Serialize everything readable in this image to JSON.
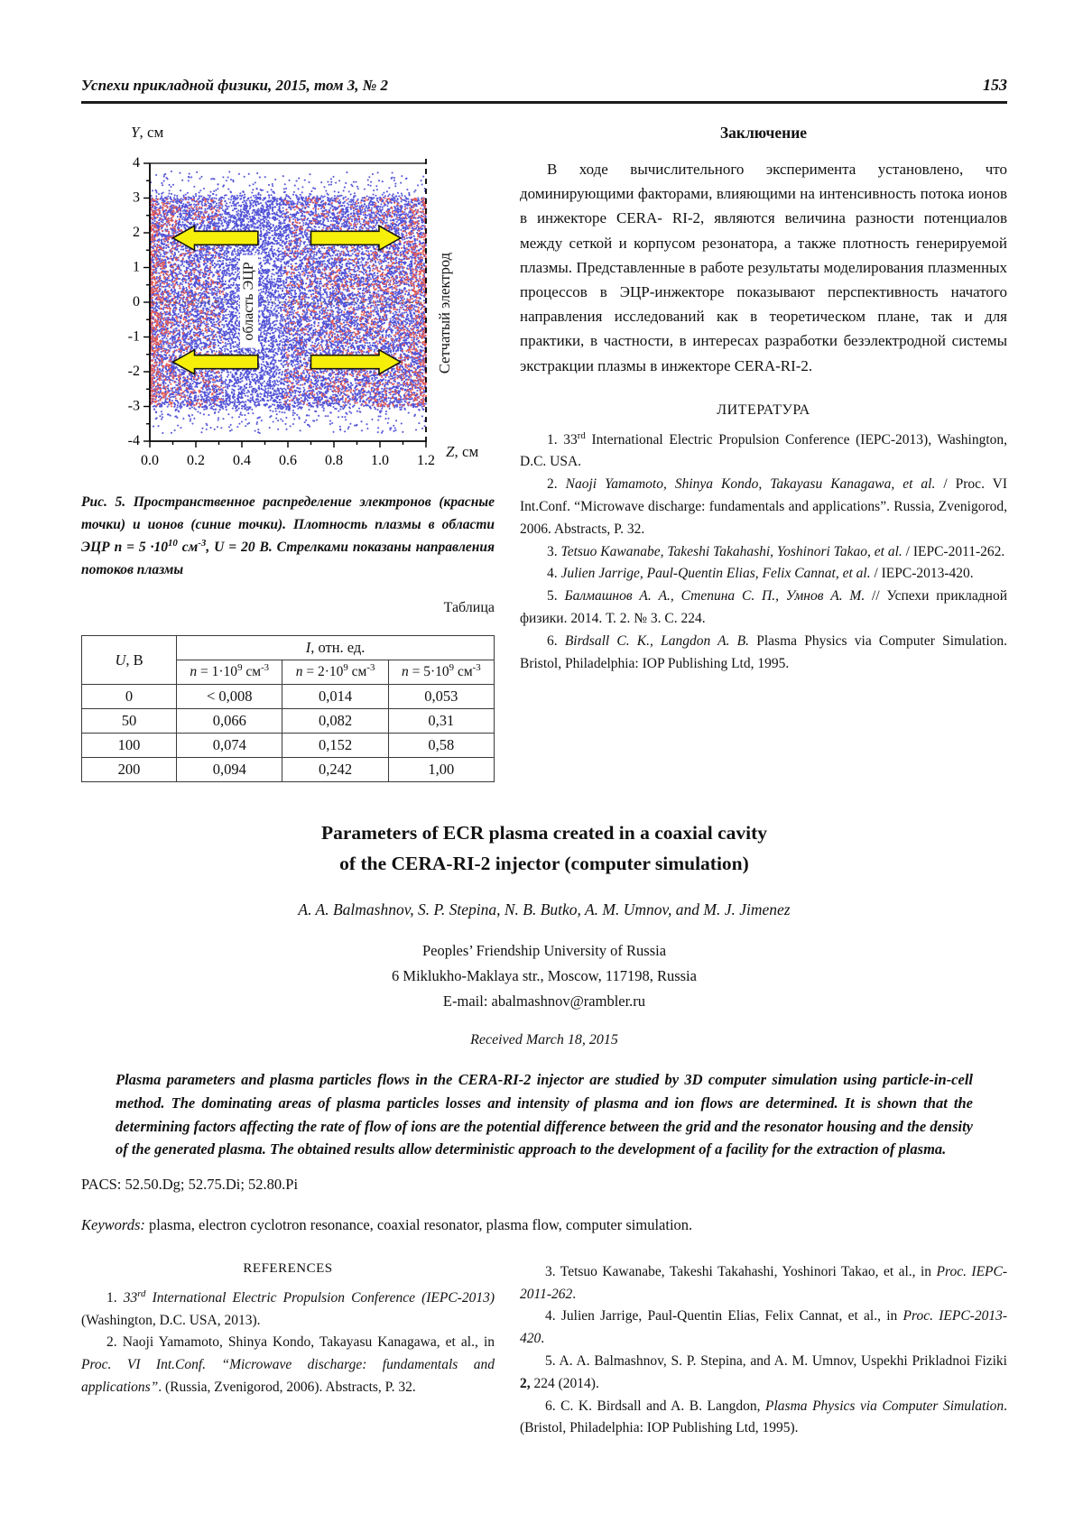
{
  "header": {
    "journal": "Успехи прикладной физики, 2015, том 3, № 2",
    "page_number": "153"
  },
  "figure": {
    "y_axis_title": [
      {
        "t": "Y",
        "s": "i"
      },
      {
        "t": ", см"
      }
    ],
    "z_axis_title": [
      {
        "t": "Z",
        "s": "i"
      },
      {
        "t": ", см"
      }
    ],
    "ecr_region_label": "область ЭЦР",
    "grid_electrode_label": "Сетчатый электрод",
    "caption": [
      {
        "t": "Рис. 5. Пространственное распределение электронов (красные точки) и ионов (синие точки). Плотность плазмы в области ЭЦР "
      },
      {
        "t": "n",
        "s": "i"
      },
      {
        "t": " = 5 ·10"
      },
      {
        "t": "10",
        "s": "sup"
      },
      {
        "t": " см"
      },
      {
        "t": "-3",
        "s": "sup"
      },
      {
        "t": ", "
      },
      {
        "t": "U",
        "s": "i"
      },
      {
        "t": " = 20 В. Стрелками показаны направления потоков плазмы"
      }
    ]
  },
  "chart_data": {
    "type": "scatter",
    "title": "Пространственное распределение электронов и ионов",
    "xlabel": "Z, см",
    "ylabel": "Y, см",
    "xlim": [
      0,
      1.2
    ],
    "ylim": [
      -4,
      4
    ],
    "x_ticks": [
      0.0,
      0.2,
      0.4,
      0.6,
      0.8,
      1.0,
      1.2
    ],
    "y_ticks": [
      -4,
      -3,
      -2,
      -1,
      0,
      1,
      2,
      3,
      4
    ],
    "grid": false,
    "series": [
      {
        "name": "ионы (синие точки)",
        "color": "rgba(80,80,215,0.95)",
        "n_points": 15000,
        "distribution": "dense uniform fill 0<Z<1.2, |Y|<3.05 with sparse halo to |Y|≈3.8"
      },
      {
        "name": "электроны (красные точки)",
        "color": "rgba(232,92,82,0.95)",
        "n_points": 3200,
        "distribution": "concentrated near left wall Z<0.32 and toward grid electrode Z>0.6, |Y|<3"
      }
    ],
    "annotations": {
      "region_label": {
        "text": "область ЭЦР",
        "x": 0.43,
        "y": 0,
        "rotation": -90
      },
      "electrode_label": {
        "text": "Сетчатый электрод",
        "x": 1.28,
        "y": -0.2,
        "rotation": -90
      },
      "dashed_right_border_x": 1.2,
      "dashed_zero_line_y": 0,
      "arrows": [
        {
          "direction": "left",
          "y": 1.85,
          "x_from": 0.47,
          "x_to": 0.1,
          "color": "#f6ef0a"
        },
        {
          "direction": "right",
          "y": 1.85,
          "x_from": 0.7,
          "x_to": 1.09,
          "color": "#f6ef0a"
        },
        {
          "direction": "left",
          "y": -1.72,
          "x_from": 0.47,
          "x_to": 0.1,
          "color": "#f6ef0a"
        },
        {
          "direction": "right",
          "y": -1.72,
          "x_from": 0.7,
          "x_to": 1.09,
          "color": "#f6ef0a"
        }
      ],
      "plasma_density_note": "n = 5·10^10 см^-3, U = 20 В"
    }
  },
  "data_table": {
    "label": "Таблица",
    "col1_header": [
      {
        "t": "U",
        "s": "i"
      },
      {
        "t": ", В"
      }
    ],
    "span_header": [
      {
        "t": "I",
        "s": "i"
      },
      {
        "t": ", отн. ед."
      }
    ],
    "sub_headers": [
      [
        {
          "t": "n",
          "s": "i"
        },
        {
          "t": " = 1·10"
        },
        {
          "t": "9",
          "s": "sup"
        },
        {
          "t": " см"
        },
        {
          "t": "-3",
          "s": "sup"
        }
      ],
      [
        {
          "t": "n",
          "s": "i"
        },
        {
          "t": " = 2·10"
        },
        {
          "t": "9",
          "s": "sup"
        },
        {
          "t": " см"
        },
        {
          "t": "-3",
          "s": "sup"
        }
      ],
      [
        {
          "t": "n",
          "s": "i"
        },
        {
          "t": " = 5·10"
        },
        {
          "t": "9",
          "s": "sup"
        },
        {
          "t": " см"
        },
        {
          "t": "-3",
          "s": "sup"
        }
      ]
    ],
    "rows": [
      [
        "0",
        "< 0,008",
        "0,014",
        "0,053"
      ],
      [
        "50",
        "0,066",
        "0,082",
        "0,31"
      ],
      [
        "100",
        "0,074",
        "0,152",
        "0,58"
      ],
      [
        "200",
        "0,094",
        "0,242",
        "1,00"
      ]
    ]
  },
  "conclusion": {
    "heading": "Заключение",
    "text": "В ходе вычислительного эксперимента установлено, что доминирующими факторами, влияющими на интенсивность потока ионов в инжекторе CERA- RI-2, являются величина разности потенциалов между сеткой и корпусом резонатора, а также плотность генерируемой плазмы. Представленные в работе результаты моделирования плазменных процессов в ЭЦР-инжекторе показывают перспективность начатого направления исследований как в теоретическом плане, так и для практики, в частности, в интересах разработки безэлектродной системы экстракции плазмы в инжекторе CERA-RI-2."
  },
  "literatura": {
    "heading": "ЛИТЕРАТУРА",
    "items": [
      [
        {
          "t": "1. 33"
        },
        {
          "t": "rd",
          "s": "sup"
        },
        {
          "t": " International Electric Propulsion Conference (IEPC-2013), Washington, D.C. USA."
        }
      ],
      [
        {
          "t": "2. "
        },
        {
          "t": "Naoji Yamamoto, Shinya Kondo, Takayasu Kanagawa, et al.",
          "s": "i"
        },
        {
          "t": " / Proc. VI Int.Conf. “Microwave discharge: fundamentals and applications”. Russia, Zvenigorod, 2006. Abstracts, P. 32."
        }
      ],
      [
        {
          "t": "3. "
        },
        {
          "t": "Tetsuo Kawanabe, Takeshi Takahashi, Yoshinori Takao, et al.",
          "s": "i"
        },
        {
          "t": " / IEPC-2011-262."
        }
      ],
      [
        {
          "t": "4. "
        },
        {
          "t": "Julien Jarrige, Paul-Quentin Elias, Felix Cannat, et al.",
          "s": "i"
        },
        {
          "t": " / IEPC-2013-420."
        }
      ],
      [
        {
          "t": "5. "
        },
        {
          "t": "Балмашнов А. А., Степина С. П., Умнов А. М.",
          "s": "i"
        },
        {
          "t": " // Успехи прикладной физики. 2014. Т. 2. № 3. С. 224."
        }
      ],
      [
        {
          "t": "6. "
        },
        {
          "t": "Birdsall C. K., Langdon A. B.",
          "s": "i"
        },
        {
          "t": " Plasma Physics via Computer Simulation. Bristol, Philadelphia: IOP Publishing Ltd, 1995."
        }
      ]
    ]
  },
  "article": {
    "title_line1": "Parameters of ECR plasma created in a coaxial cavity",
    "title_line2": "of the CERA-RI-2 injector (computer simulation)",
    "authors": "A. A. Balmashnov, S. P. Stepina, N. B. Butko, A. M. Umnov, and M. J. Jimenez",
    "affiliation": "Peoples’ Friendship University of Russia",
    "address": "6 Miklukho-Maklaya str., Moscow, 117198, Russia",
    "email": "E-mail: abalmashnov@rambler.ru",
    "received": "Received March 18, 2015",
    "abstract": "Plasma parameters and plasma particles flows in the CERA-RI-2 injector are studied by 3D computer simulation using particle-in-cell method. The dominating areas of plasma particles losses and intensity of plasma and ion flows are determined. It is shown that the determining factors affecting the rate of flow of ions are the potential difference between the grid and the resonator housing and the density of the generated plasma. The obtained results allow deterministic approach to the development of a facility for the extraction of plasma.",
    "pacs": "PACS: 52.50.Dg; 52.75.Di; 52.80.Pi",
    "keywords_label": "Keywords:",
    "keywords": " plasma, electron cyclotron resonance, coaxial resonator, plasma flow, computer simulation."
  },
  "references": {
    "heading": "REFERENCES",
    "left_items": [
      [
        {
          "t": "1. "
        },
        {
          "t": "33",
          "s": "i"
        },
        {
          "t": "rd",
          "s": "i sup"
        },
        {
          "t": " International Electric Propulsion Conference (IEPC-2013)",
          "s": "i"
        },
        {
          "t": " (Washington, D.C. USA, 2013)."
        }
      ],
      [
        {
          "t": "2. Naoji Yamamoto, Shinya Kondo, Takayasu Kanagawa, et al., in "
        },
        {
          "t": "Proc. VI Int.Conf. “Microwave discharge: fundamentals and applications”",
          "s": "i"
        },
        {
          "t": ". (Russia, Zvenigorod, 2006). Abstracts, P. 32."
        }
      ]
    ],
    "right_items": [
      [
        {
          "t": "3. Tetsuo Kawanabe, Takeshi Takahashi, Yoshinori Takao, et al., in "
        },
        {
          "t": "Proc. IEPC-2011-262",
          "s": "i"
        },
        {
          "t": "."
        }
      ],
      [
        {
          "t": "4. Julien Jarrige, Paul-Quentin Elias, Felix Cannat, et al., in "
        },
        {
          "t": "Proc. IEPC-2013-420",
          "s": "i"
        },
        {
          "t": "."
        }
      ],
      [
        {
          "t": "5. A. A. Balmashnov, S. P. Stepina, and A. M. Umnov, Uspekhi Prikladnoi Fiziki "
        },
        {
          "t": "2,",
          "s": "b"
        },
        {
          "t": " 224 (2014)."
        }
      ],
      [
        {
          "t": "6. C. K. Birdsall and A. B. Langdon, "
        },
        {
          "t": "Plasma Physics via Computer Simulation",
          "s": "i"
        },
        {
          "t": ". (Bristol, Philadelphia: IOP Publishing Ltd, 1995)."
        }
      ]
    ]
  }
}
